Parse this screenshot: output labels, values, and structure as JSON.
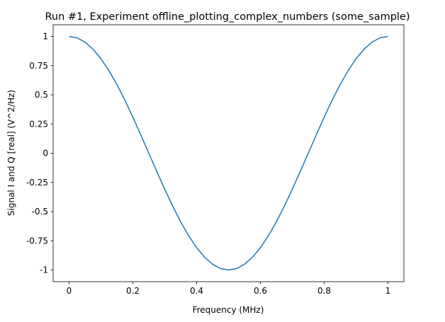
{
  "chart_data": {
    "type": "line",
    "title": "Run #1, Experiment offline_plotting_complex_numbers (some_sample)",
    "xlabel": "Frequency (MHz)",
    "ylabel": "Signal I and Q [real] (V^2/Hz)",
    "xlim": [
      -0.05,
      1.05
    ],
    "ylim": [
      -1.1,
      1.1
    ],
    "xticks": [
      0,
      0.2,
      0.4,
      0.6,
      0.8,
      1
    ],
    "xtick_labels": [
      "0",
      "0.2",
      "0.4",
      "0.6",
      "0.8",
      "1"
    ],
    "yticks": [
      1,
      0.75,
      0.5,
      0.25,
      0,
      -0.25,
      -0.5,
      -0.75,
      -1
    ],
    "ytick_labels": [
      "1",
      "0.75",
      "0.5",
      "0.25",
      "0",
      "-0.25",
      "-0.5",
      "-0.75",
      "-1"
    ],
    "grid": false,
    "series": [
      {
        "color": "#1f77b4",
        "x": [
          0,
          0.025,
          0.05,
          0.075,
          0.1,
          0.125,
          0.15,
          0.175,
          0.2,
          0.225,
          0.25,
          0.275,
          0.3,
          0.325,
          0.35,
          0.375,
          0.4,
          0.425,
          0.45,
          0.475,
          0.5,
          0.525,
          0.55,
          0.575,
          0.6,
          0.625,
          0.65,
          0.675,
          0.7,
          0.725,
          0.75,
          0.775,
          0.8,
          0.825,
          0.85,
          0.875,
          0.9,
          0.925,
          0.95,
          0.975,
          1
        ],
        "y": [
          1,
          0.988,
          0.951,
          0.891,
          0.809,
          0.707,
          0.588,
          0.454,
          0.309,
          0.156,
          0,
          -0.156,
          -0.309,
          -0.454,
          -0.588,
          -0.707,
          -0.809,
          -0.891,
          -0.951,
          -0.988,
          -1,
          -0.988,
          -0.951,
          -0.891,
          -0.809,
          -0.707,
          -0.588,
          -0.454,
          -0.309,
          -0.156,
          0,
          0.156,
          0.309,
          0.454,
          0.588,
          0.707,
          0.809,
          0.891,
          0.951,
          0.988,
          1
        ]
      }
    ]
  }
}
